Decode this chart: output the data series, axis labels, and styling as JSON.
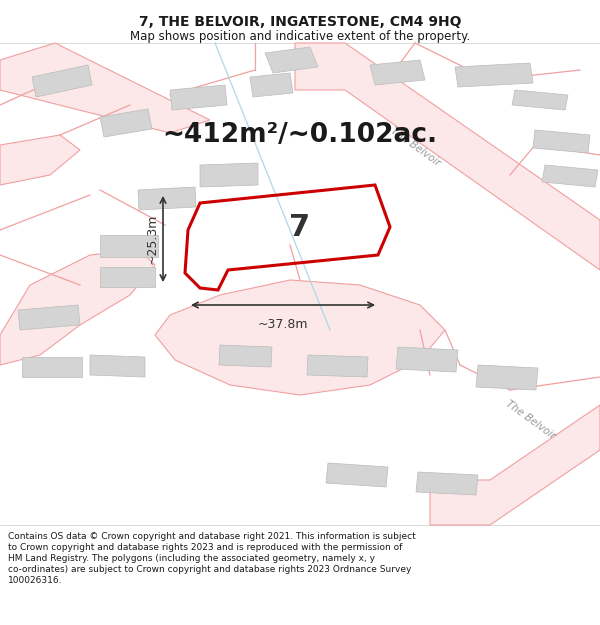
{
  "title": "7, THE BELVOIR, INGATESTONE, CM4 9HQ",
  "subtitle": "Map shows position and indicative extent of the property.",
  "area_text": "~412m²/~0.102ac.",
  "width_text": "~37.8m",
  "height_text": "~25.3m",
  "property_number": "7",
  "footer_lines": [
    "Contains OS data © Crown copyright and database right 2021. This information is subject",
    "to Crown copyright and database rights 2023 and is reproduced with the permission of",
    "HM Land Registry. The polygons (including the associated geometry, namely x, y",
    "co-ordinates) are subject to Crown copyright and database rights 2023 Ordnance Survey",
    "100026316."
  ],
  "bg_color": "#ffffff",
  "road_color": "#f0a0a0",
  "road_fill": "#fce8e8",
  "building_fill": "#d4d4d4",
  "building_edge": "#bbbbbb",
  "property_edge": "#cc0000",
  "road_label_color": "#999999",
  "dim_line_color": "#333333",
  "area_text_color": "#1a1a1a",
  "title_color": "#1a1a1a",
  "footer_color": "#1a1a1a",
  "thin_line_color": "#add8e6"
}
